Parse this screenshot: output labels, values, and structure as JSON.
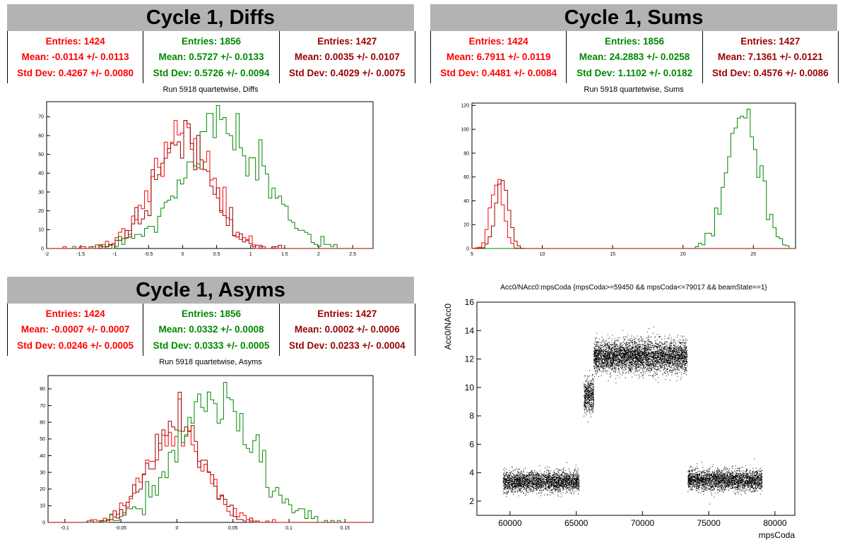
{
  "colors": {
    "red": "#ff0000",
    "green": "#008800",
    "darkred": "#990000"
  },
  "panels": [
    {
      "title": "Cycle 1, Diffs",
      "subtitle": "Run 5918 quartetwise, Diffs",
      "stats": [
        {
          "entries": "Entries: 1424",
          "mean": "Mean: -0.0114 +/- 0.0113",
          "std": "Std Dev: 0.4267 +/- 0.0080",
          "color": "#ff0000"
        },
        {
          "entries": "Entries: 1856",
          "mean": "Mean: 0.5727 +/- 0.0133",
          "std": "Std Dev: 0.5726 +/- 0.0094",
          "color": "#008800"
        },
        {
          "entries": "Entries: 1427",
          "mean": "Mean: 0.0035 +/- 0.0107",
          "std": "Std Dev: 0.4029 +/- 0.0075",
          "color": "#990000"
        }
      ]
    },
    {
      "title": "Cycle 1, Sums",
      "subtitle": "Run 5918 quartetwise, Sums",
      "stats": [
        {
          "entries": "Entries: 1424",
          "mean": "Mean: 6.7911 +/- 0.0119",
          "std": "Std Dev: 0.4481 +/- 0.0084",
          "color": "#ff0000"
        },
        {
          "entries": "Entries: 1856",
          "mean": "Mean: 24.2883 +/- 0.0258",
          "std": "Std Dev: 1.1102 +/- 0.0182",
          "color": "#008800"
        },
        {
          "entries": "Entries: 1427",
          "mean": "Mean: 7.1361 +/- 0.0121",
          "std": "Std Dev: 0.4576 +/- 0.0086",
          "color": "#990000"
        }
      ]
    },
    {
      "title": "Cycle 1, Asyms",
      "subtitle": "Run 5918 quartetwise, Asyms",
      "stats": [
        {
          "entries": "Entries: 1424",
          "mean": "Mean: -0.0007 +/- 0.0007",
          "std": "Std Dev: 0.0246 +/- 0.0005",
          "color": "#ff0000"
        },
        {
          "entries": "Entries: 1856",
          "mean": "Mean: 0.0332 +/- 0.0008",
          "std": "Std Dev: 0.0333 +/- 0.0005",
          "color": "#008800"
        },
        {
          "entries": "Entries: 1427",
          "mean": "Mean: 0.0002 +/- 0.0006",
          "std": "Std Dev: 0.0233 +/- 0.0004",
          "color": "#990000"
        }
      ]
    }
  ],
  "chart_data": [
    {
      "type": "histogram",
      "title": "Run 5918 quartetwise, Diffs",
      "xlim": [
        -2.0,
        2.8
      ],
      "ylim": [
        0,
        78
      ],
      "xticks": [
        "-2",
        "-1.5",
        "-1",
        "-0.5",
        "0",
        "0.5",
        "1",
        "1.5",
        "2",
        "2.5"
      ],
      "xtick_values": [
        -2,
        -1.5,
        -1,
        -0.5,
        0,
        0.5,
        1,
        1.5,
        2,
        2.5
      ],
      "yticks": [
        "0",
        "10",
        "20",
        "30",
        "40",
        "50",
        "60",
        "70"
      ],
      "ytick_values": [
        0,
        10,
        20,
        30,
        40,
        50,
        60,
        70
      ],
      "series": [
        {
          "color": "#ff0000",
          "mean": -0.0114,
          "std": 0.4267,
          "entries": 1424,
          "peak": 68
        },
        {
          "color": "#008800",
          "mean": 0.5727,
          "std": 0.5726,
          "entries": 1856,
          "peak": 76
        },
        {
          "color": "#990000",
          "mean": 0.0035,
          "std": 0.4029,
          "entries": 1427,
          "peak": 68
        }
      ]
    },
    {
      "type": "histogram",
      "title": "Run 5918 quartetwise, Sums",
      "xlim": [
        5,
        28
      ],
      "ylim": [
        0,
        122
      ],
      "xticks": [
        "5",
        "10",
        "15",
        "20",
        "25"
      ],
      "xtick_values": [
        5,
        10,
        15,
        20,
        25
      ],
      "yticks": [
        "0",
        "20",
        "40",
        "60",
        "80",
        "100",
        "120"
      ],
      "ytick_values": [
        0,
        20,
        40,
        60,
        80,
        100,
        120
      ],
      "series": [
        {
          "color": "#ff0000",
          "mean": 6.7911,
          "std": 0.4481,
          "entries": 1424,
          "peak": 58
        },
        {
          "color": "#008800",
          "mean": 24.2883,
          "std": 1.1102,
          "entries": 1856,
          "peak": 117
        },
        {
          "color": "#990000",
          "mean": 7.1361,
          "std": 0.4576,
          "entries": 1427,
          "peak": 57
        }
      ]
    },
    {
      "type": "histogram",
      "title": "Run 5918 quartetwise, Asyms",
      "xlim": [
        -0.115,
        0.175
      ],
      "ylim": [
        0,
        88
      ],
      "xticks": [
        "-0.1",
        "-0.05",
        "0",
        "0.05",
        "0.1",
        "0.15"
      ],
      "xtick_values": [
        -0.1,
        -0.05,
        0,
        0.05,
        0.1,
        0.15
      ],
      "yticks": [
        "0",
        "10",
        "20",
        "30",
        "40",
        "50",
        "60",
        "70",
        "80"
      ],
      "ytick_values": [
        0,
        10,
        20,
        30,
        40,
        50,
        60,
        70,
        80
      ],
      "series": [
        {
          "color": "#ff0000",
          "mean": -0.0007,
          "std": 0.0246,
          "entries": 1424,
          "peak": 74
        },
        {
          "color": "#008800",
          "mean": 0.0332,
          "std": 0.0333,
          "entries": 1856,
          "peak": 84
        },
        {
          "color": "#990000",
          "mean": 0.0002,
          "std": 0.0233,
          "entries": 1427,
          "peak": 78
        }
      ]
    },
    {
      "type": "scatter",
      "title": "Acc0/NAcc0:mpsCoda {mpsCoda>=59450 && mpsCoda<=79017 && beamState==1}",
      "xlabel": "mpsCoda",
      "ylabel": "Acc0/NAcc0",
      "xlim": [
        57500,
        81500
      ],
      "ylim": [
        1,
        16
      ],
      "xticks": [
        "60000",
        "65000",
        "70000",
        "75000",
        "80000"
      ],
      "xtick_values": [
        60000,
        65000,
        70000,
        75000,
        80000
      ],
      "yticks": [
        "2",
        "4",
        "6",
        "8",
        "10",
        "12",
        "14",
        "16"
      ],
      "ytick_values": [
        2,
        4,
        6,
        8,
        10,
        12,
        14,
        16
      ],
      "clusters": [
        {
          "x": [
            59450,
            65200
          ],
          "y_center": 3.4,
          "y_spread": 0.35,
          "n": 2600
        },
        {
          "x": [
            65550,
            66300
          ],
          "y_center": 9.4,
          "y_spread": 0.6,
          "n": 500
        },
        {
          "x": [
            66300,
            73350
          ],
          "y_center": 12.2,
          "y_spread": 0.55,
          "n": 4200
        },
        {
          "x": [
            73400,
            79017
          ],
          "y_center": 3.5,
          "y_spread": 0.35,
          "n": 2600
        }
      ]
    }
  ]
}
